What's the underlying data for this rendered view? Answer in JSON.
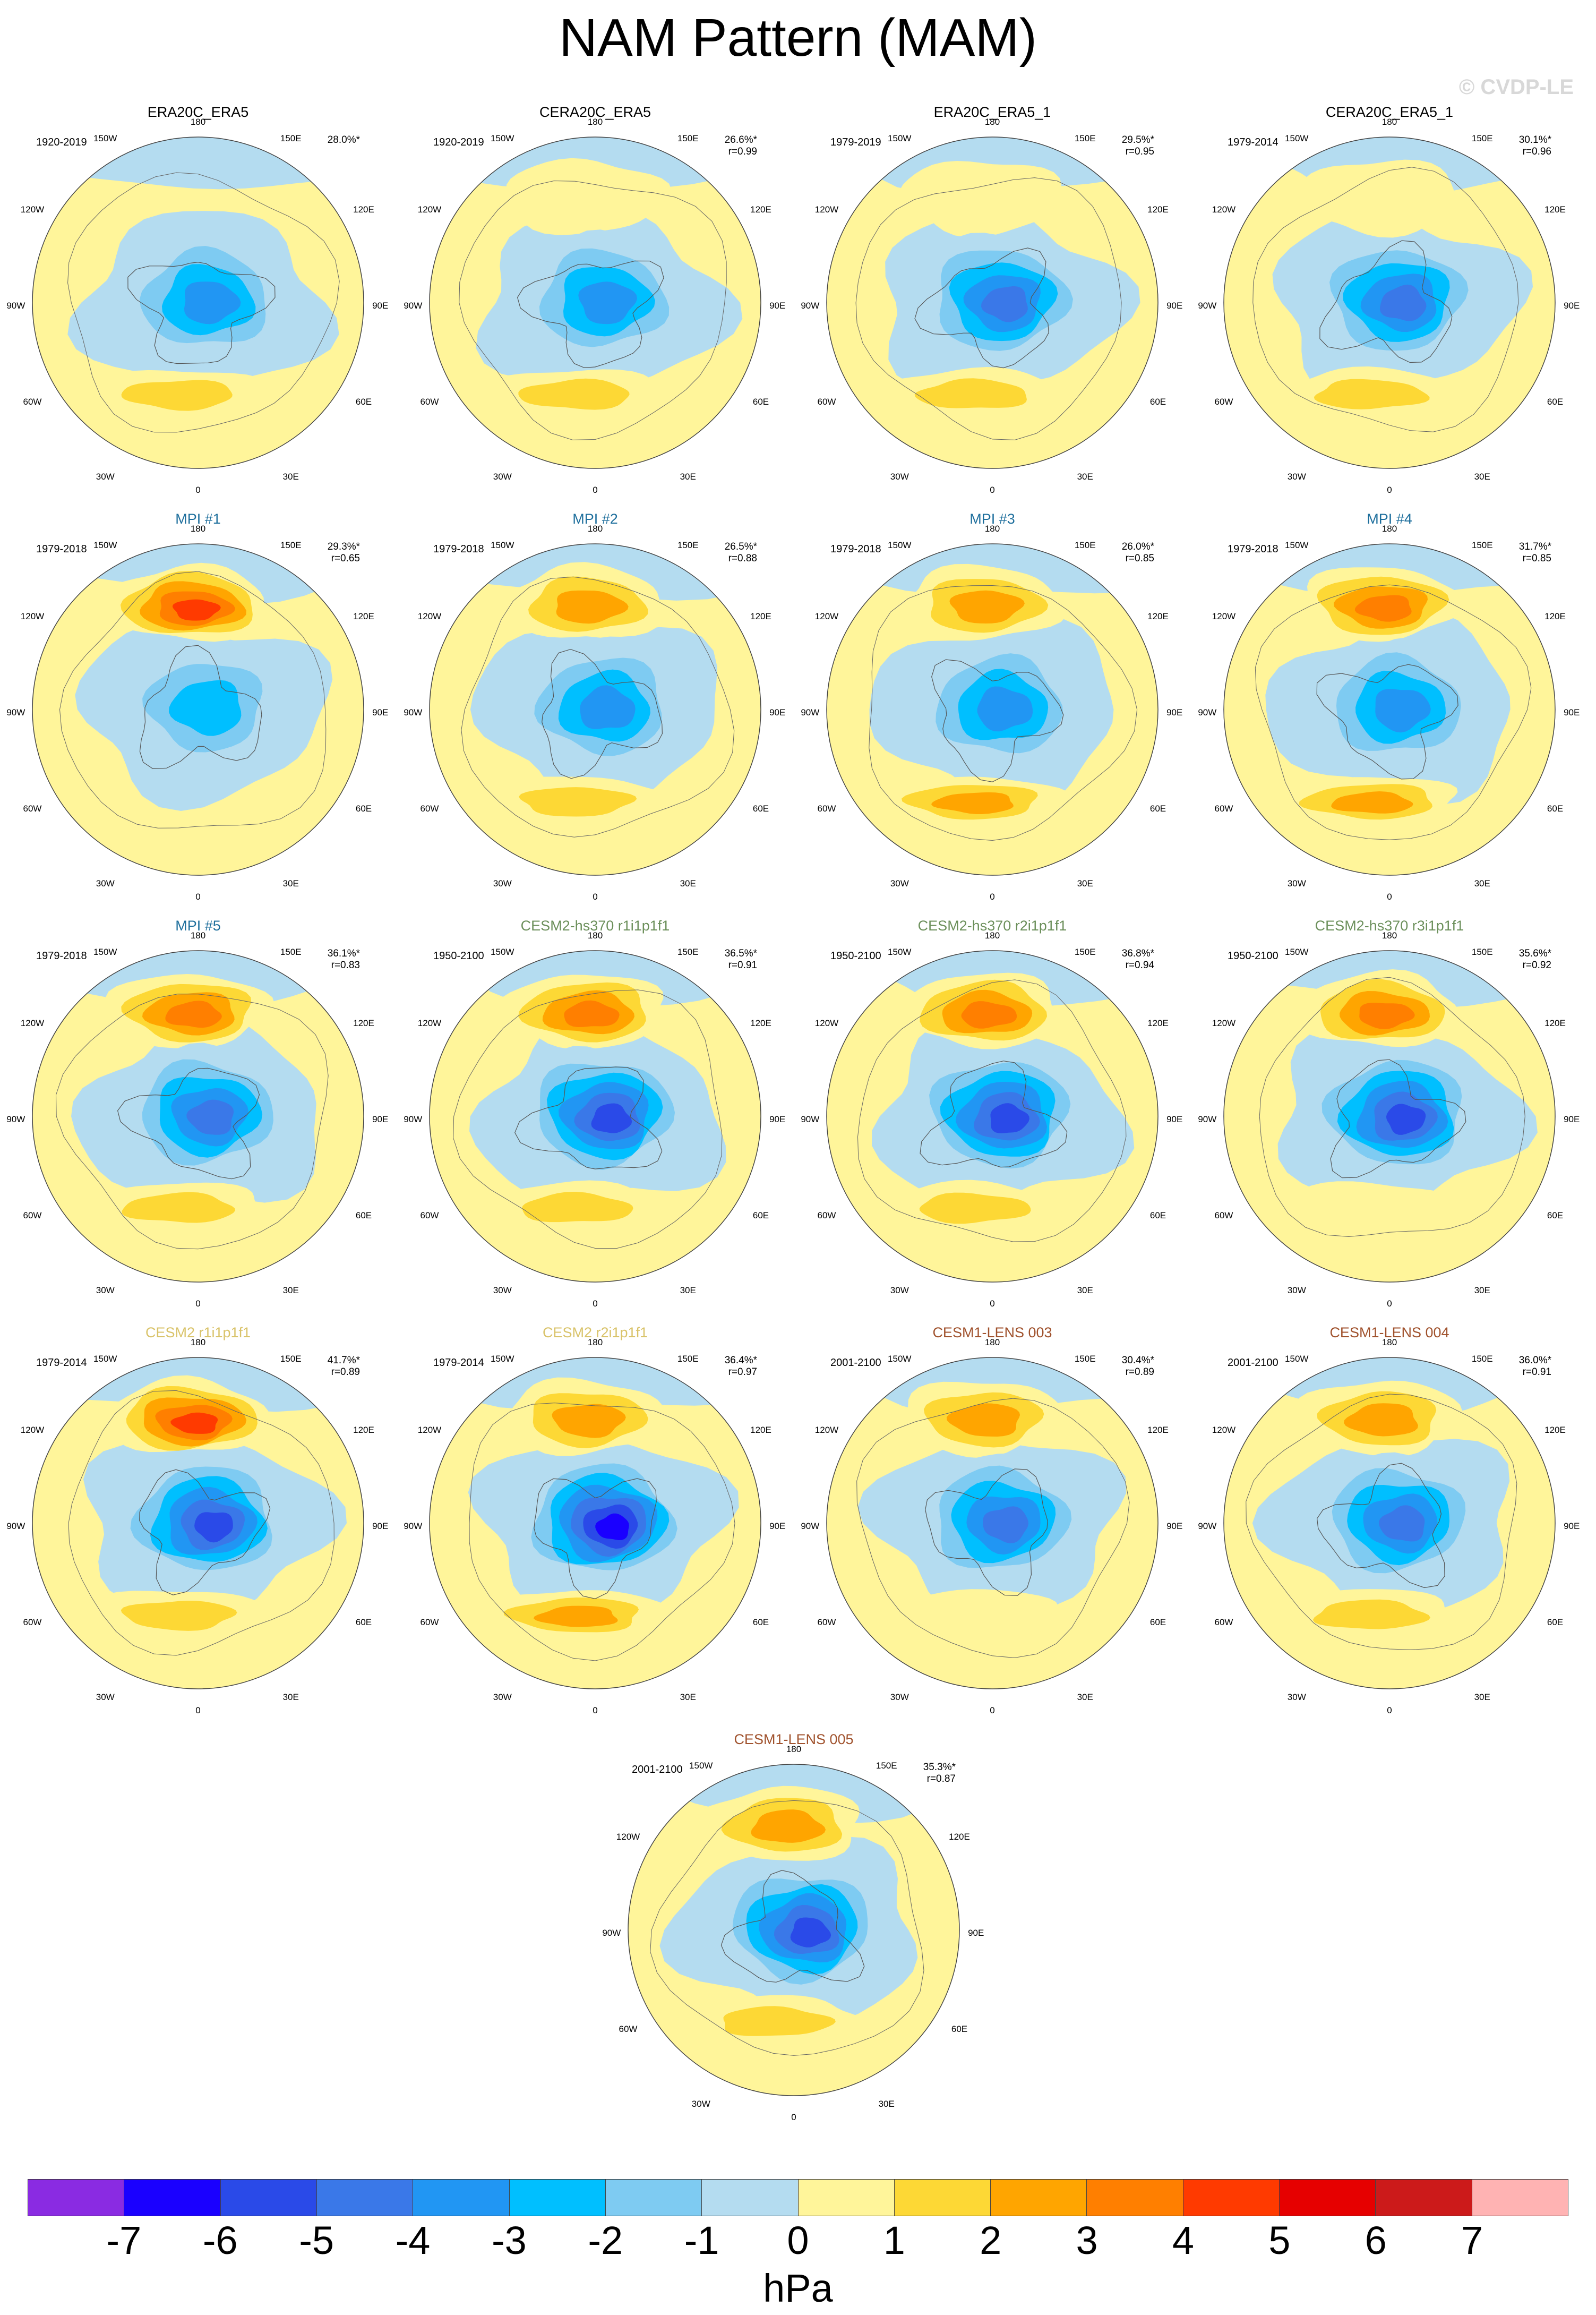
{
  "title": "NAM Pattern (MAM)",
  "watermark": "© CVDP-LE",
  "colors": {
    "black_title": "#000000",
    "mpi_title": "#1d6e9c",
    "cesm2hs_title": "#6b8f5a",
    "cesm2_title": "#d9c36a",
    "lens_title": "#a0522d"
  },
  "lon_labels": {
    "n": "180",
    "nnw": "150W",
    "nne": "150E",
    "wnw": "120W",
    "ene": "120E",
    "w": "90W",
    "e": "90E",
    "wsw": "60W",
    "ese": "60E",
    "ssw": "30W",
    "sse": "30E",
    "s": "0"
  },
  "panels": [
    {
      "title": "ERA20C_ERA5",
      "title_color": "#000000",
      "period": "1920-2019",
      "pct": "28.0%*",
      "r": "",
      "pattern": {
        "pacific": 0,
        "center_min": -4,
        "atlantic": 1.5
      }
    },
    {
      "title": "CERA20C_ERA5",
      "title_color": "#000000",
      "period": "1920-2019",
      "pct": "26.6%*",
      "r": "r=0.99",
      "pattern": {
        "pacific": 1,
        "center_min": -4,
        "atlantic": 1.5
      }
    },
    {
      "title": "ERA20C_ERA5_1",
      "title_color": "#000000",
      "period": "1979-2019",
      "pct": "29.5%*",
      "r": "r=0.95",
      "pattern": {
        "pacific": 1,
        "center_min": -4.5,
        "atlantic": 1.5
      }
    },
    {
      "title": "CERA20C_ERA5_1",
      "title_color": "#000000",
      "period": "1979-2014",
      "pct": "30.1%*",
      "r": "r=0.96",
      "pattern": {
        "pacific": 1,
        "center_min": -4.5,
        "atlantic": 1.5
      }
    },
    {
      "title": "MPI #1",
      "title_color": "#1d6e9c",
      "period": "1979-2018",
      "pct": "29.3%*",
      "r": "r=0.65",
      "pattern": {
        "pacific": 5,
        "center_min": -3,
        "atlantic": 0
      }
    },
    {
      "title": "MPI #2",
      "title_color": "#1d6e9c",
      "period": "1979-2018",
      "pct": "26.5%*",
      "r": "r=0.88",
      "pattern": {
        "pacific": 2.5,
        "center_min": -3.5,
        "atlantic": 1.5
      }
    },
    {
      "title": "MPI #3",
      "title_color": "#1d6e9c",
      "period": "1979-2018",
      "pct": "26.0%*",
      "r": "r=0.85",
      "pattern": {
        "pacific": 2.5,
        "center_min": -3.5,
        "atlantic": 2.5
      }
    },
    {
      "title": "MPI #4",
      "title_color": "#1d6e9c",
      "period": "1979-2018",
      "pct": "31.7%*",
      "r": "r=0.85",
      "pattern": {
        "pacific": 3.5,
        "center_min": -3.5,
        "atlantic": 2.5
      }
    },
    {
      "title": "MPI #5",
      "title_color": "#1d6e9c",
      "period": "1979-2018",
      "pct": "36.1%*",
      "r": "r=0.83",
      "pattern": {
        "pacific": 4,
        "center_min": -4.5,
        "atlantic": 1.5
      }
    },
    {
      "title": "CESM2-hs370 r1i1p1f1",
      "title_color": "#6b8f5a",
      "period": "1950-2100",
      "pct": "36.5%*",
      "r": "r=0.91",
      "pattern": {
        "pacific": 4,
        "center_min": -5.5,
        "atlantic": 1.5
      }
    },
    {
      "title": "CESM2-hs370 r2i1p1f1",
      "title_color": "#6b8f5a",
      "period": "1950-2100",
      "pct": "36.8%*",
      "r": "r=0.94",
      "pattern": {
        "pacific": 3.5,
        "center_min": -5.5,
        "atlantic": 1.5
      }
    },
    {
      "title": "CESM2-hs370 r3i1p1f1",
      "title_color": "#6b8f5a",
      "period": "1950-2100",
      "pct": "35.6%*",
      "r": "r=0.92",
      "pattern": {
        "pacific": 3.5,
        "center_min": -5.5,
        "atlantic": 1
      }
    },
    {
      "title": "CESM2 r1i1p1f1",
      "title_color": "#d9c36a",
      "period": "1979-2014",
      "pct": "41.7%*",
      "r": "r=0.89",
      "pattern": {
        "pacific": 5,
        "center_min": -6,
        "atlantic": 1.5
      }
    },
    {
      "title": "CESM2 r2i1p1f1",
      "title_color": "#d9c36a",
      "period": "1979-2014",
      "pct": "36.4%*",
      "r": "r=0.97",
      "pattern": {
        "pacific": 2.5,
        "center_min": -6.5,
        "atlantic": 2.5
      }
    },
    {
      "title": "CESM1-LENS 003",
      "title_color": "#a0522d",
      "period": "2001-2100",
      "pct": "30.4%*",
      "r": "r=0.89",
      "pattern": {
        "pacific": 2.5,
        "center_min": -5,
        "atlantic": 1
      }
    },
    {
      "title": "CESM1-LENS 004",
      "title_color": "#a0522d",
      "period": "2001-2100",
      "pct": "36.0%*",
      "r": "r=0.91",
      "pattern": {
        "pacific": 2.5,
        "center_min": -5,
        "atlantic": 1.5
      }
    },
    {
      "title": "CESM1-LENS 005",
      "title_color": "#a0522d",
      "period": "2001-2100",
      "pct": "35.3%*",
      "r": "r=0.87",
      "pattern": {
        "pacific": 3,
        "center_min": -6,
        "atlantic": 1.5
      }
    }
  ],
  "colorbar": {
    "colors": [
      "#8a2be2",
      "#1a00ff",
      "#2a4ae8",
      "#3a78e8",
      "#2196f3",
      "#00bfff",
      "#7ecbf2",
      "#b4dcf0",
      "#fff59a",
      "#fdd835",
      "#ffa500",
      "#ff7f00",
      "#ff3a00",
      "#e60000",
      "#cc1a1a",
      "#ffb3b3"
    ],
    "labels": [
      "-7",
      "-6",
      "-5",
      "-4",
      "-3",
      "-2",
      "-1",
      "0",
      "1",
      "2",
      "3",
      "4",
      "5",
      "6",
      "7"
    ],
    "units": "hPa"
  }
}
